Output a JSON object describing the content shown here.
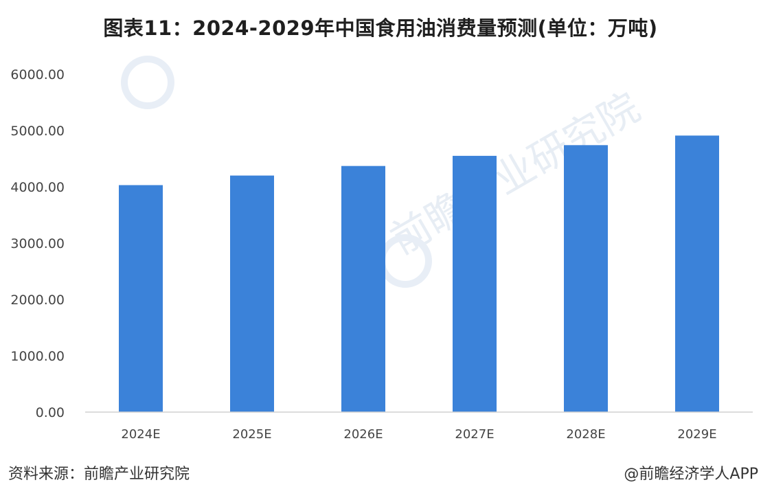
{
  "header": {
    "title": "图表11：2024-2029年中国食用油消费量预测(单位：万吨)"
  },
  "footer": {
    "source": "资料来源：前瞻产业研究院",
    "credit": "@前瞻经济学人APP"
  },
  "watermark": {
    "text": "前瞻产业研究院"
  },
  "colors": {
    "bar": "#3b82d9",
    "axis_line": "#d0d0d0",
    "tick_text": "#444444",
    "watermark": "#e2e9f2"
  },
  "chart_data": {
    "type": "bar",
    "title": "图表11：2024-2029年中国食用油消费量预测(单位：万吨)",
    "xlabel": "",
    "ylabel": "",
    "categories": [
      "2024E",
      "2025E",
      "2026E",
      "2027E",
      "2028E",
      "2029E"
    ],
    "values": [
      4030,
      4200,
      4370,
      4550,
      4740,
      4910
    ],
    "ylim": [
      0,
      6000
    ],
    "yticks": [
      "0.00",
      "1000.00",
      "2000.00",
      "3000.00",
      "4000.00",
      "5000.00",
      "6000.00"
    ],
    "grid": false,
    "legend": "none"
  }
}
